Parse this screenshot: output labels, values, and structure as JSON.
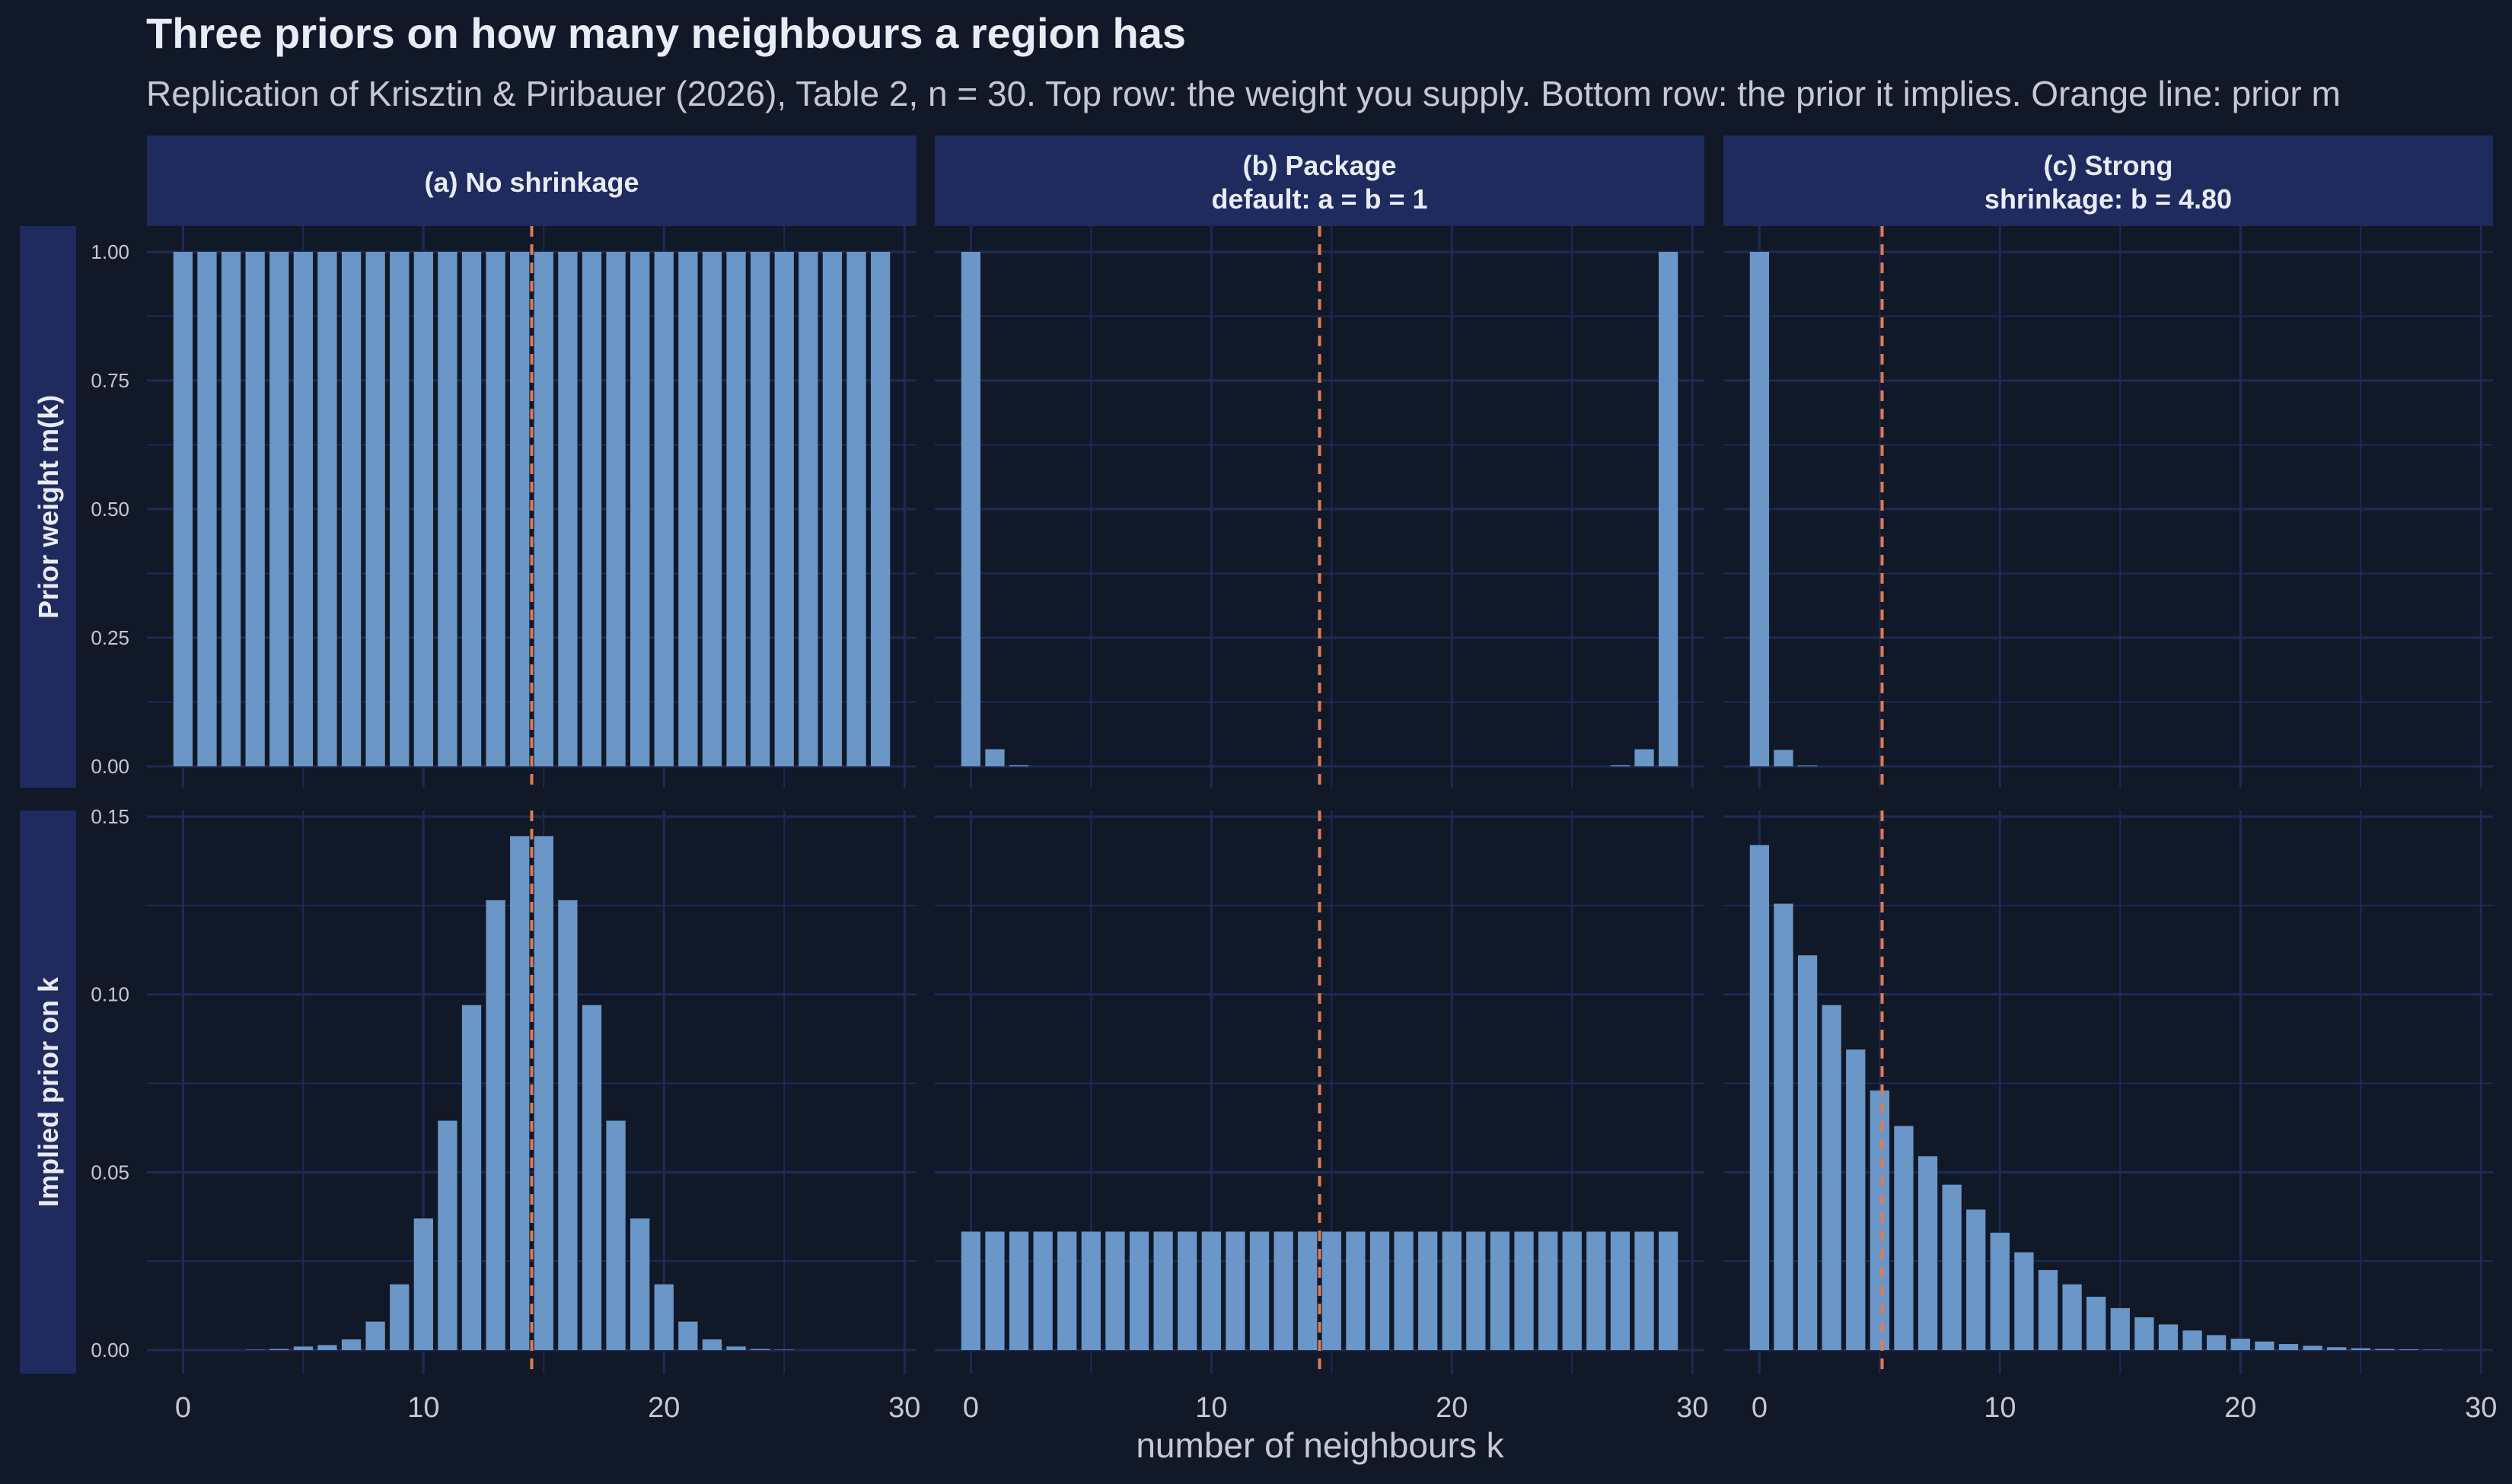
{
  "title": "Three priors on how many neighbours a region has",
  "subtitle": "Replication of Krisztin & Piribauer (2026), Table 2, n = 30. Top row: the weight you supply. Bottom row: the prior it implies. Orange line: prior m",
  "xlabel": "number of neighbours k",
  "colors": {
    "background": "#111827",
    "strip": "#1f2a5e",
    "grid": "#1e2a55",
    "bar": "#6a96c8",
    "reference_line": "#e07b53",
    "text": "#e8ecf4",
    "tick_text": "#c3c9d6"
  },
  "chart_data": {
    "type": "bar",
    "facet_layout": "2 rows x 3 columns",
    "grid": true,
    "columns": [
      {
        "strip_lines": [
          "(a) No shrinkage"
        ],
        "ref_line_x": 14.5
      },
      {
        "strip_lines": [
          "(b) Package",
          "default: a = b = 1"
        ],
        "ref_line_x": 14.5
      },
      {
        "strip_lines": [
          "(c) Strong",
          "shrinkage: b = 4.80"
        ],
        "ref_line_x": 5.1
      }
    ],
    "rows": [
      {
        "label": "Prior weight m(k)",
        "ylim": [
          0,
          1.05
        ],
        "yticks": [
          0,
          0.25,
          0.5,
          0.75,
          1.0
        ],
        "ytick_labels": [
          "0.00",
          "0.25",
          "0.50",
          "0.75",
          "1.00"
        ]
      },
      {
        "label": "Implied prior on k",
        "ylim": [
          0,
          0.15
        ],
        "yticks": [
          0,
          0.05,
          0.1,
          0.15
        ],
        "ytick_labels": [
          "0.00",
          "0.05",
          "0.10",
          "0.15"
        ]
      }
    ],
    "x": [
      0,
      1,
      2,
      3,
      4,
      5,
      6,
      7,
      8,
      9,
      10,
      11,
      12,
      13,
      14,
      15,
      16,
      17,
      18,
      19,
      20,
      21,
      22,
      23,
      24,
      25,
      26,
      27,
      28,
      29
    ],
    "xlim": [
      -1.5,
      30.5
    ],
    "xticks": [
      0,
      10,
      20,
      30
    ],
    "xtick_labels": [
      "0",
      "10",
      "20",
      "30"
    ],
    "panels": [
      {
        "row": 0,
        "col": 0,
        "values": [
          1,
          1,
          1,
          1,
          1,
          1,
          1,
          1,
          1,
          1,
          1,
          1,
          1,
          1,
          1,
          1,
          1,
          1,
          1,
          1,
          1,
          1,
          1,
          1,
          1,
          1,
          1,
          1,
          1,
          1
        ]
      },
      {
        "row": 0,
        "col": 1,
        "values": [
          1,
          0.0333,
          0.0023,
          0,
          0,
          0,
          0,
          0,
          0,
          0,
          0,
          0,
          0,
          0,
          0,
          0,
          0,
          0,
          0,
          0,
          0,
          0,
          0,
          0,
          0,
          0,
          0,
          0.0023,
          0.0333,
          1
        ]
      },
      {
        "row": 0,
        "col": 2,
        "values": [
          1,
          0.032,
          0.0018,
          0,
          0,
          0,
          0,
          0,
          0,
          0,
          0,
          0,
          0,
          0,
          0,
          0,
          0,
          0,
          0,
          0,
          0,
          0,
          0,
          0,
          0,
          0,
          0,
          0,
          0,
          0
        ]
      },
      {
        "row": 1,
        "col": 0,
        "values": [
          0,
          0,
          0,
          0.0001,
          0.0003,
          0.001,
          0.0014,
          0.003,
          0.008,
          0.0185,
          0.037,
          0.0645,
          0.097,
          0.1265,
          0.1445,
          0.1445,
          0.1265,
          0.097,
          0.0645,
          0.037,
          0.0185,
          0.008,
          0.003,
          0.001,
          0.0003,
          0.0001,
          0,
          0,
          0,
          0
        ]
      },
      {
        "row": 1,
        "col": 1,
        "values": [
          0.0333,
          0.0333,
          0.0333,
          0.0333,
          0.0333,
          0.0333,
          0.0333,
          0.0333,
          0.0333,
          0.0333,
          0.0333,
          0.0333,
          0.0333,
          0.0333,
          0.0333,
          0.0333,
          0.0333,
          0.0333,
          0.0333,
          0.0333,
          0.0333,
          0.0333,
          0.0333,
          0.0333,
          0.0333,
          0.0333,
          0.0333,
          0.0333,
          0.0333,
          0.0333
        ]
      },
      {
        "row": 1,
        "col": 2,
        "values": [
          0.142,
          0.1255,
          0.111,
          0.097,
          0.0845,
          0.073,
          0.063,
          0.0545,
          0.0465,
          0.0395,
          0.033,
          0.0275,
          0.0225,
          0.0185,
          0.015,
          0.0118,
          0.0092,
          0.0072,
          0.0055,
          0.0042,
          0.0032,
          0.0024,
          0.0017,
          0.0012,
          0.0008,
          0.0005,
          0.0003,
          0.0002,
          0.0001,
          0
        ]
      }
    ]
  }
}
